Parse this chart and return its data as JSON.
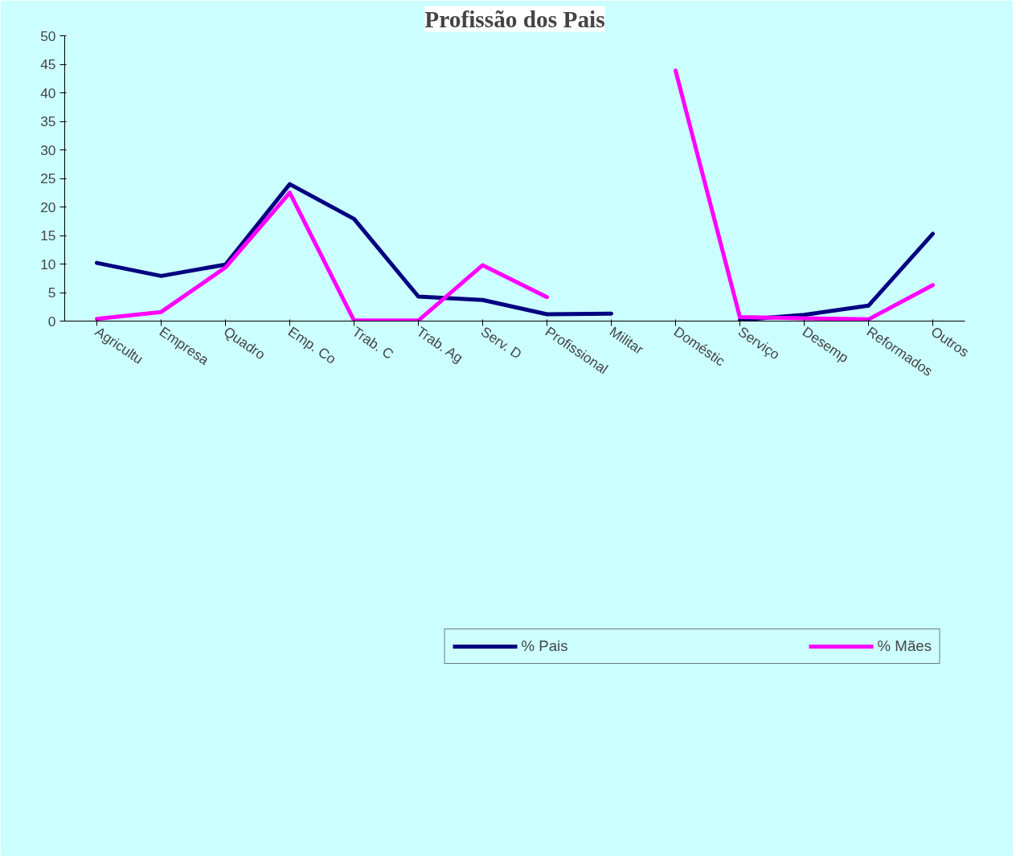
{
  "chart_data": {
    "type": "line",
    "title": "Profissão dos Pais",
    "categories": [
      "Agricultu",
      "Empresa",
      "Quadro",
      "Emp. Co",
      "Trab. C",
      "Trab. Ag",
      "Serv. D",
      "Profissional",
      "Militar",
      "Doméstic",
      "Serviço",
      "Desemp",
      "Reformados",
      "Outros"
    ],
    "series": [
      {
        "name": "% Pais",
        "color": "#000080",
        "values": [
          10.2,
          7.9,
          9.9,
          24.0,
          17.9,
          4.3,
          3.7,
          1.2,
          1.3,
          null,
          0.2,
          1.1,
          2.7,
          15.3
        ]
      },
      {
        "name": "% Mães",
        "color": "#ff00ff",
        "values": [
          0.4,
          1.6,
          9.4,
          22.5,
          0.1,
          0.1,
          9.8,
          4.2,
          null,
          43.9,
          0.7,
          0.5,
          0.3,
          6.3
        ]
      }
    ],
    "ylim": [
      0,
      50
    ],
    "yticks": [
      0,
      5,
      10,
      15,
      20,
      25,
      30,
      35,
      40,
      45,
      50
    ],
    "grid": false,
    "legend": "bottom",
    "marker": "none",
    "line_style": "solid"
  }
}
